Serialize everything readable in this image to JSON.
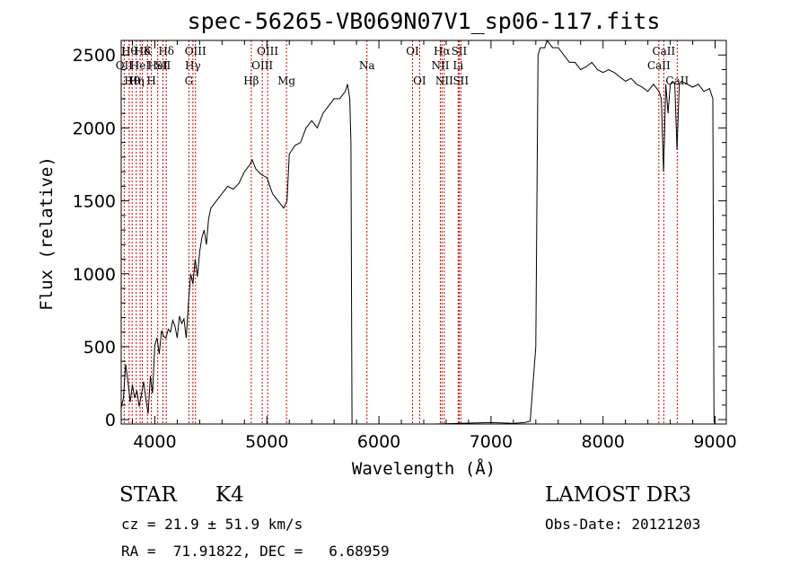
{
  "chart_data": {
    "type": "line",
    "title": "spec-56265-VB069N07V1_sp06-117.fits",
    "xlabel": "Wavelength (Å)",
    "ylabel": "Flux (relative)",
    "xlim": [
      3700,
      9100
    ],
    "ylim": [
      -30,
      2600
    ],
    "xticks": [
      4000,
      5000,
      6000,
      7000,
      8000,
      9000
    ],
    "yticks": [
      0,
      500,
      1000,
      1500,
      2000,
      2500
    ],
    "line_color": "#000000",
    "marker_color": "#cc0000",
    "spectrum": {
      "x": [
        3700,
        3720,
        3740,
        3760,
        3780,
        3800,
        3820,
        3840,
        3860,
        3880,
        3900,
        3920,
        3940,
        3960,
        3980,
        4000,
        4020,
        4040,
        4060,
        4080,
        4100,
        4120,
        4140,
        4160,
        4180,
        4200,
        4220,
        4240,
        4260,
        4280,
        4300,
        4320,
        4340,
        4360,
        4380,
        4400,
        4420,
        4440,
        4460,
        4480,
        4500,
        4550,
        4600,
        4650,
        4700,
        4750,
        4800,
        4850,
        4870,
        4900,
        4950,
        5000,
        5050,
        5100,
        5150,
        5180,
        5200,
        5250,
        5300,
        5350,
        5400,
        5450,
        5500,
        5550,
        5600,
        5650,
        5700,
        5720,
        5740,
        5750,
        5760,
        5780,
        5800,
        5850,
        6000,
        6500,
        7000,
        7200,
        7300,
        7350,
        7400,
        7420,
        7440,
        7480,
        7500,
        7550,
        7600,
        7650,
        7700,
        7750,
        7800,
        7850,
        7900,
        7950,
        8000,
        8050,
        8100,
        8150,
        8200,
        8250,
        8300,
        8350,
        8400,
        8450,
        8500,
        8520,
        8540,
        8560,
        8580,
        8600,
        8620,
        8640,
        8660,
        8680,
        8700,
        8750,
        8800,
        8850,
        8900,
        8950,
        8980,
        8990,
        9000,
        9010
      ],
      "y": [
        80,
        150,
        380,
        260,
        120,
        240,
        150,
        200,
        90,
        170,
        260,
        140,
        40,
        300,
        180,
        510,
        560,
        450,
        610,
        570,
        560,
        620,
        600,
        680,
        640,
        560,
        710,
        660,
        690,
        560,
        800,
        1000,
        930,
        1100,
        980,
        1150,
        1250,
        1300,
        1200,
        1380,
        1450,
        1500,
        1550,
        1600,
        1580,
        1620,
        1700,
        1750,
        1780,
        1720,
        1680,
        1660,
        1550,
        1500,
        1450,
        1500,
        1820,
        1880,
        1900,
        2000,
        2050,
        2000,
        2100,
        2150,
        2200,
        2200,
        2250,
        2300,
        2200,
        1900,
        -30,
        -30,
        -30,
        -30,
        -30,
        -30,
        -20,
        -25,
        -20,
        -10,
        500,
        2500,
        2550,
        2550,
        2600,
        2550,
        2550,
        2500,
        2450,
        2450,
        2400,
        2420,
        2450,
        2400,
        2380,
        2400,
        2380,
        2350,
        2320,
        2340,
        2300,
        2280,
        2250,
        2300,
        2250,
        2200,
        1700,
        2300,
        2100,
        2300,
        2320,
        2300,
        1850,
        2300,
        2320,
        2300,
        2280,
        2300,
        2250,
        2270,
        2200,
        -10,
        -30,
        -30
      ]
    },
    "lines": [
      {
        "wavelength": 3727,
        "label": "OII",
        "row": 2
      },
      {
        "wavelength": 3771,
        "label": "Hθ",
        "row": 1
      },
      {
        "wavelength": 3798,
        "label": "Hθ",
        "row": 3
      },
      {
        "wavelength": 3835,
        "label": "Hη",
        "row": 3
      },
      {
        "wavelength": 3869,
        "label": "HeI",
        "row": 2
      },
      {
        "wavelength": 3889,
        "label": "Hδ",
        "row": 1
      },
      {
        "wavelength": 3934,
        "label": "K",
        "row": 1
      },
      {
        "wavelength": 3969,
        "label": "H",
        "row": 3
      },
      {
        "wavelength": 4026,
        "label": "HeI",
        "row": 2
      },
      {
        "wavelength": 4072,
        "label": "SII",
        "row": 2
      },
      {
        "wavelength": 4102,
        "label": "Hδ",
        "row": 1
      },
      {
        "wavelength": 4304,
        "label": "G",
        "row": 3
      },
      {
        "wavelength": 4340,
        "label": "Hγ",
        "row": 2
      },
      {
        "wavelength": 4363,
        "label": "OIII",
        "row": 1
      },
      {
        "wavelength": 4861,
        "label": "Hβ",
        "row": 3
      },
      {
        "wavelength": 4959,
        "label": "OIII",
        "row": 2
      },
      {
        "wavelength": 5007,
        "label": "OIII",
        "row": 1
      },
      {
        "wavelength": 5175,
        "label": "Mg",
        "row": 3
      },
      {
        "wavelength": 5893,
        "label": "Na",
        "row": 2
      },
      {
        "wavelength": 6300,
        "label": "OI",
        "row": 1
      },
      {
        "wavelength": 6363,
        "label": "OI",
        "row": 3
      },
      {
        "wavelength": 6548,
        "label": "NII",
        "row": 2
      },
      {
        "wavelength": 6563,
        "label": "Hα",
        "row": 1
      },
      {
        "wavelength": 6583,
        "label": "NII",
        "row": 3
      },
      {
        "wavelength": 6707,
        "label": "Li",
        "row": 2
      },
      {
        "wavelength": 6716,
        "label": "SII",
        "row": 1
      },
      {
        "wavelength": 6731,
        "label": "SII",
        "row": 3
      },
      {
        "wavelength": 8498,
        "label": "CaII",
        "row": 2
      },
      {
        "wavelength": 8542,
        "label": "CaII",
        "row": 1
      },
      {
        "wavelength": 8662,
        "label": "CaII",
        "row": 3
      }
    ]
  },
  "info": {
    "class_label": "STAR",
    "subclass_label": "K4",
    "survey_label": "LAMOST DR3",
    "velocity_text": "cz = 21.9 ± 51.9 km/s",
    "obs_date_text": "Obs-Date: 20121203",
    "coords_text": "RA =  71.91822, DEC =   6.68959"
  }
}
